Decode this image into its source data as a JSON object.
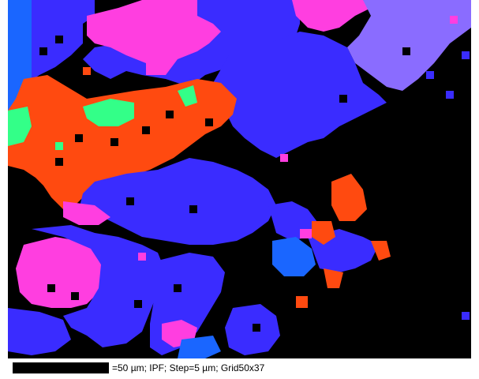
{
  "caption": {
    "scale_bar_length": "50 µm",
    "text": "=50 µm; IPF; Step=5 µm; Grid50x37"
  },
  "colors": {
    "background": "#000000",
    "blue": "#3a2cff",
    "pink": "#ff3ee0",
    "orange": "#ff4a10",
    "green": "#33ff88",
    "lavender": "#8a6cff",
    "azure": "#1a66ff"
  }
}
